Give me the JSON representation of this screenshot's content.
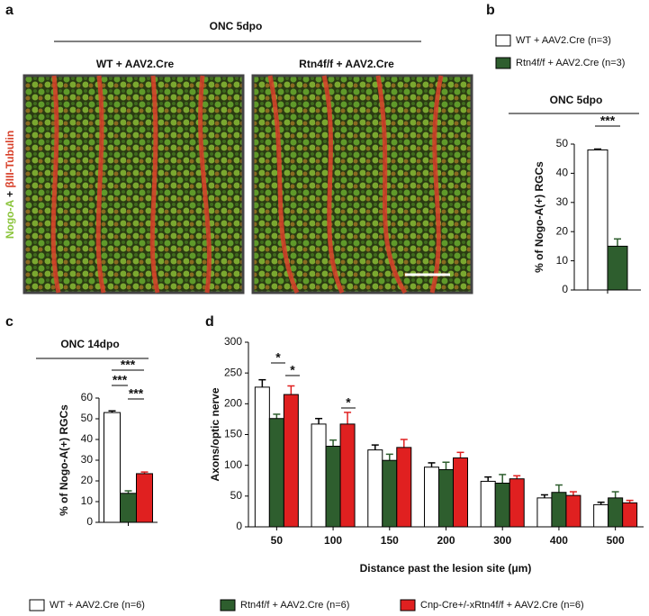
{
  "panels": {
    "letters": [
      "a",
      "b",
      "c",
      "d"
    ],
    "a": {
      "title": "ONC 5dpo",
      "columns": [
        "WT + AAV2.Cre",
        "Rtn4f/f + AAV2.Cre"
      ],
      "ylabel": [
        "Nogo-A",
        "+",
        "βIII-Tubulin"
      ]
    }
  },
  "chart_data": [
    {
      "type": "bar",
      "title": "ONC 5dpo",
      "ylabel": "% of Nogo-A(+) RGCs",
      "categories": [
        null
      ],
      "ylim": [
        0,
        50
      ],
      "yticks": [
        0,
        10,
        20,
        30,
        40,
        50
      ],
      "annotations": [
        "***"
      ],
      "series": [
        {
          "name": "WT + AAV2.Cre (n=3)",
          "color": "#ffffff",
          "values": [
            48
          ],
          "errors": [
            0.3
          ]
        },
        {
          "name": "Rtn4f/f + AAV2.Cre (n=3)",
          "color": "#2e5e2e",
          "values": [
            15
          ],
          "errors": [
            2.5
          ]
        }
      ]
    },
    {
      "type": "bar",
      "title": "ONC 14dpo",
      "ylabel": "% of Nogo-A(+) RGCs",
      "categories": [
        null
      ],
      "ylim": [
        0,
        60
      ],
      "yticks": [
        0,
        10,
        20,
        30,
        40,
        50,
        60
      ],
      "annotations": [
        "***",
        "***",
        "***"
      ],
      "series": [
        {
          "color": "#ffffff",
          "values": [
            53
          ],
          "errors": [
            0.8
          ]
        },
        {
          "color": "#2e5e2e",
          "values": [
            14
          ],
          "errors": [
            1.2
          ]
        },
        {
          "color": "#e02020",
          "values": [
            23.5
          ],
          "errors": [
            0.8
          ]
        }
      ]
    },
    {
      "type": "bar",
      "xlabel": "Distance past the lesion site (μm)",
      "ylabel": "Axons/optic nerve",
      "categories": [
        "50",
        "100",
        "150",
        "200",
        "300",
        "400",
        "500"
      ],
      "ylim": [
        0,
        300
      ],
      "yticks": [
        0,
        50,
        100,
        150,
        200,
        250,
        300
      ],
      "annotations": [
        "*",
        "*",
        "*"
      ],
      "series": [
        {
          "name": "WT + AAV2.Cre (n=6)",
          "color": "#ffffff",
          "values": [
            227,
            167,
            125,
            97,
            74,
            47,
            36
          ],
          "errors": [
            12,
            9,
            8,
            7,
            7,
            5,
            4
          ]
        },
        {
          "name": "Rtn4f/f + AAV2.Cre (n=6)",
          "color": "#2e5e2e",
          "values": [
            176,
            131,
            108,
            93,
            71,
            56,
            47
          ],
          "errors": [
            7,
            10,
            10,
            12,
            14,
            12,
            10
          ]
        },
        {
          "name": "Cnp-Cre+/-xRtn4f/f + AAV2.Cre (n=6)",
          "color": "#e02020",
          "values": [
            215,
            167,
            129,
            112,
            78,
            51,
            39
          ],
          "errors": [
            14,
            19,
            13,
            9,
            5,
            6,
            4
          ]
        }
      ]
    }
  ]
}
